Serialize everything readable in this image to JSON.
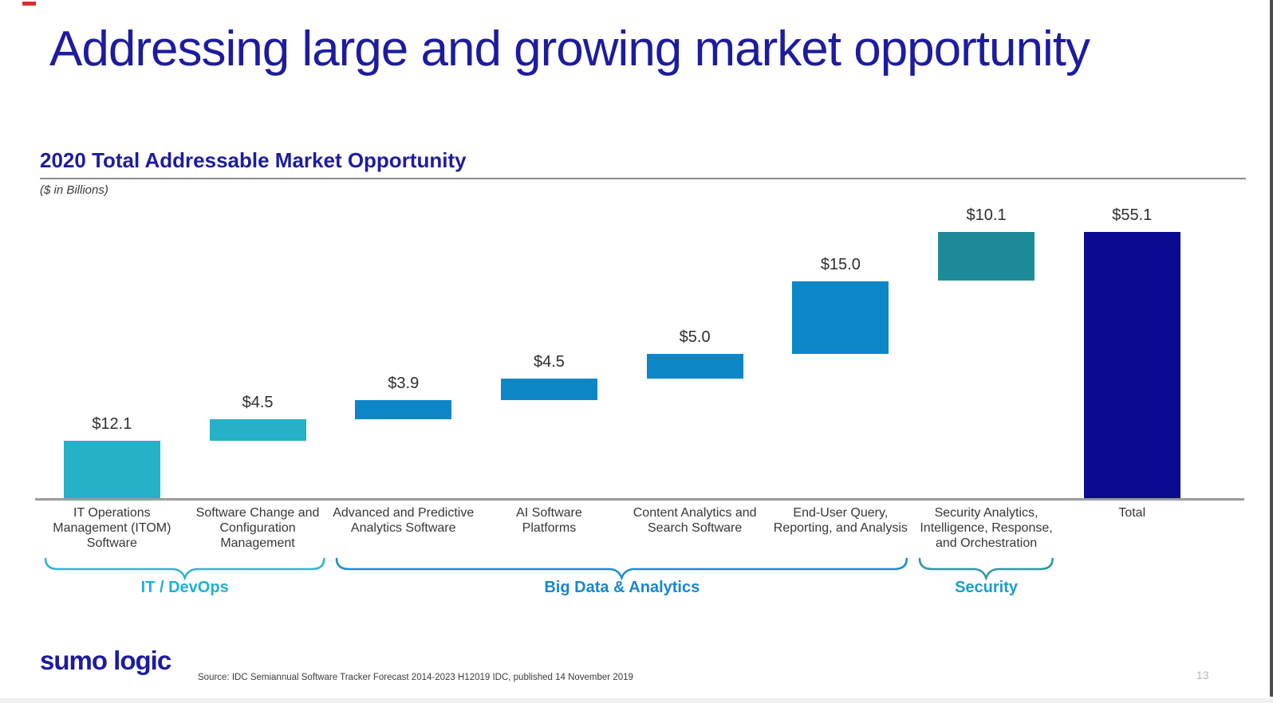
{
  "page": {
    "title": "Addressing large and growing market opportunity",
    "section_heading": "2020 Total Addressable Market Opportunity",
    "units_note": "($ in Billions)",
    "footer": {
      "logo_text": "sumo logic",
      "source_text": "Source: IDC Semiannual Software Tracker Forecast 2014-2023 H12019 IDC, published 14 November 2019",
      "page_number": "13"
    }
  },
  "chart_data": {
    "type": "bar",
    "subtype": "waterfall",
    "title": "2020 Total Addressable Market Opportunity",
    "units": "$ in Billions",
    "categories": [
      "IT Operations\nManagement (ITOM)\nSoftware",
      "Software Change and\nConfiguration\nManagement",
      "Advanced and Predictive\nAnalytics Software",
      "AI Software\nPlatforms",
      "Content Analytics and\nSearch Software",
      "End-User Query,\nReporting, and Analysis",
      "Security Analytics,\nIntelligence, Response,\nand Orchestration",
      "Total"
    ],
    "values": [
      12.1,
      4.5,
      3.9,
      4.5,
      5.0,
      15.0,
      10.1,
      55.1
    ],
    "value_labels": [
      "$12.1",
      "$4.5",
      "$3.9",
      "$4.5",
      "$5.0",
      "$15.0",
      "$10.1",
      "$55.1"
    ],
    "total_index": 7,
    "bar_colors": [
      "#25b1c6",
      "#25b1c6",
      "#0d86c7",
      "#0d86c7",
      "#0d86c7",
      "#0d86c7",
      "#1e8c98",
      "#0a0a91"
    ],
    "ylim": [
      0,
      55.1
    ],
    "grid": false,
    "legend": false,
    "axis_line_color": "#9c9c9c",
    "groups": [
      {
        "label": "IT / DevOps",
        "start": 0,
        "end": 1,
        "brace_color": "#35b4cb",
        "label_color": "#1fb0d6"
      },
      {
        "label": "Big Data & Analytics",
        "start": 2,
        "end": 5,
        "brace_color": "#1e8ecd",
        "label_color": "#1787cf"
      },
      {
        "label": "Security",
        "start": 6,
        "end": 6,
        "brace_color": "#2d99a5",
        "label_color": "#1a9ec9"
      }
    ]
  },
  "colors": {
    "accent_navy": "#1d1c9e",
    "text_dark": "#363636",
    "page_number_gray": "#b5b5b5",
    "marker_red": "#e02a2a"
  }
}
